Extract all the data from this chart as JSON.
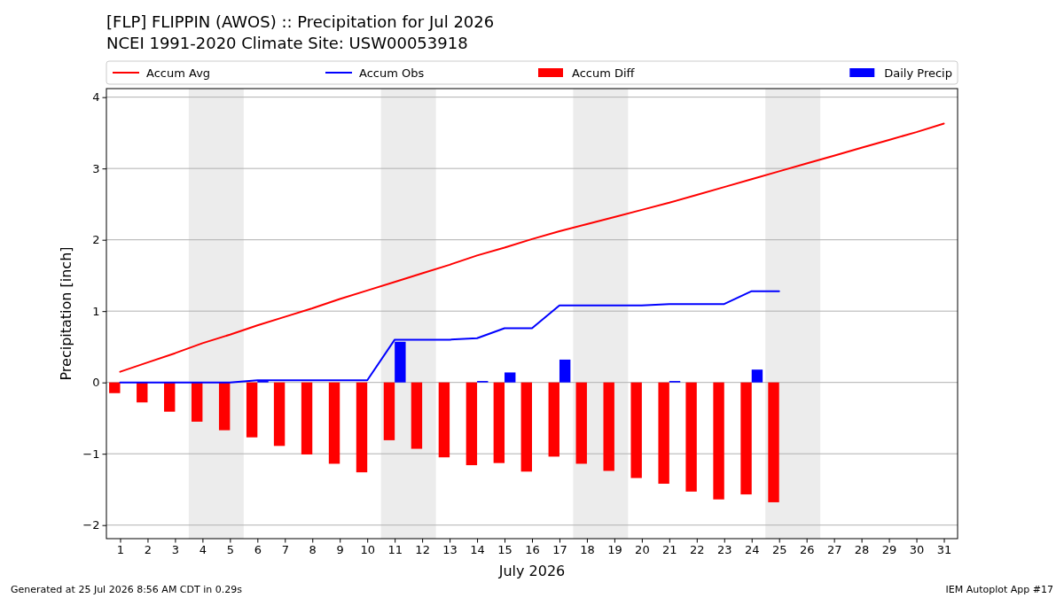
{
  "chart_data": {
    "type": "bar",
    "title": "[FLP] FLIPPIN (AWOS) :: Precipitation for Jul 2026",
    "subtitle": "NCEI 1991-2020 Climate Site: USW00053918",
    "xlabel": "July 2026",
    "ylabel": "Precipitation [inch]",
    "xlim": [
      0.5,
      31.5
    ],
    "xticks": [
      1,
      2,
      3,
      4,
      5,
      6,
      7,
      8,
      9,
      10,
      11,
      12,
      13,
      14,
      15,
      16,
      17,
      18,
      19,
      20,
      21,
      22,
      23,
      24,
      25,
      26,
      27,
      28,
      29,
      30,
      31
    ],
    "ylim": [
      -2.19,
      4.12
    ],
    "yticks": [
      {
        "value": -2,
        "label": "−2"
      },
      {
        "value": -1,
        "label": "−1"
      },
      0,
      1,
      2,
      3,
      4
    ],
    "grid": "y",
    "legend": "top",
    "bands": [
      {
        "axis": "x",
        "from": 3.5,
        "to": 5.5,
        "color": "#ececec"
      },
      {
        "axis": "x",
        "from": 10.5,
        "to": 12.5,
        "color": "#ececec"
      },
      {
        "axis": "x",
        "from": 17.5,
        "to": 19.5,
        "color": "#ececec"
      },
      {
        "axis": "x",
        "from": 24.5,
        "to": 26.5,
        "color": "#ececec"
      }
    ],
    "series": [
      {
        "name": "Accum Avg",
        "type": "line",
        "color": "#ff0000",
        "x": [
          1,
          2,
          3,
          4,
          5,
          6,
          7,
          8,
          9,
          10,
          11,
          12,
          13,
          14,
          15,
          16,
          17,
          18,
          19,
          20,
          21,
          22,
          23,
          24,
          25,
          26,
          27,
          28,
          29,
          30,
          31
        ],
        "values": [
          0.15,
          0.28,
          0.41,
          0.55,
          0.67,
          0.8,
          0.92,
          1.04,
          1.17,
          1.29,
          1.41,
          1.53,
          1.65,
          1.78,
          1.89,
          2.01,
          2.12,
          2.22,
          2.32,
          2.42,
          2.52,
          2.63,
          2.74,
          2.85,
          2.96,
          3.07,
          3.18,
          3.29,
          3.4,
          3.51,
          3.63
        ]
      },
      {
        "name": "Accum Obs",
        "type": "line",
        "color": "#0000ff",
        "x": [
          1,
          2,
          3,
          4,
          5,
          6,
          7,
          8,
          9,
          10,
          11,
          12,
          13,
          14,
          15,
          16,
          17,
          18,
          19,
          20,
          21,
          22,
          23,
          24,
          25
        ],
        "values": [
          0,
          0,
          0,
          0,
          0,
          0.03,
          0.03,
          0.03,
          0.03,
          0.03,
          0.6,
          0.6,
          0.6,
          0.62,
          0.76,
          0.76,
          1.08,
          1.08,
          1.08,
          1.08,
          1.1,
          1.1,
          1.1,
          1.28,
          1.28
        ]
      },
      {
        "name": "Accum Diff",
        "color": "#ff0000",
        "x": [
          1,
          2,
          3,
          4,
          5,
          6,
          7,
          8,
          9,
          10,
          11,
          12,
          13,
          14,
          15,
          16,
          17,
          18,
          19,
          20,
          21,
          22,
          23,
          24,
          25
        ],
        "values": [
          -0.15,
          -0.28,
          -0.41,
          -0.55,
          -0.67,
          -0.77,
          -0.89,
          -1.01,
          -1.14,
          -1.26,
          -0.81,
          -0.93,
          -1.05,
          -1.16,
          -1.13,
          -1.25,
          -1.04,
          -1.14,
          -1.24,
          -1.34,
          -1.42,
          -1.53,
          -1.64,
          -1.57,
          -1.68
        ]
      },
      {
        "name": "Daily Precip",
        "color": "#0000ff",
        "x": [
          6,
          11,
          14,
          15,
          17,
          21,
          24
        ],
        "values": [
          0.03,
          0.57,
          0.02,
          0.14,
          0.32,
          0.02,
          0.18
        ]
      }
    ],
    "annotations": [
      "Generated at 25 Jul 2026 8:56 AM CDT in 0.29s",
      "IEM Autoplot App #17"
    ]
  }
}
